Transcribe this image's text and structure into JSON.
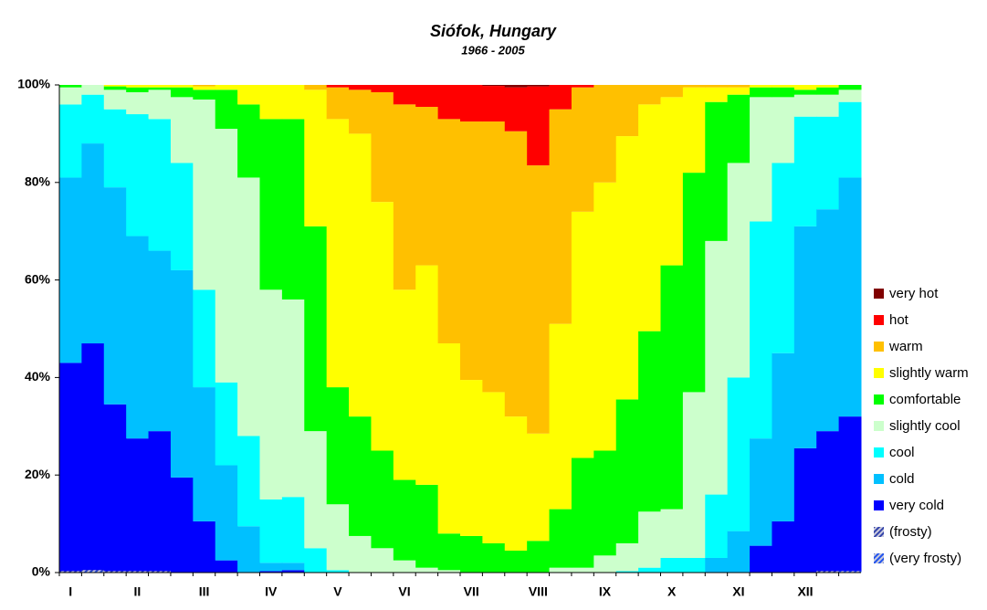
{
  "chart_data": {
    "type": "stacked_bar_100",
    "title": "Siófok, Hungary",
    "subtitle": "1966 - 2005",
    "categories": [
      "I",
      null,
      null,
      "II",
      null,
      null,
      "III",
      null,
      null,
      "IV",
      null,
      null,
      "V",
      null,
      null,
      "VI",
      null,
      null,
      "VII",
      null,
      null,
      "VIII",
      null,
      null,
      "IX",
      null,
      null,
      "X",
      null,
      null,
      "XI",
      null,
      null,
      "XII",
      null,
      null
    ],
    "ylim": [
      0,
      100
    ],
    "yticks": [
      {
        "value": 0,
        "label": "0%"
      },
      {
        "value": 20,
        "label": "20%"
      },
      {
        "value": 40,
        "label": "40%"
      },
      {
        "value": 60,
        "label": "60%"
      },
      {
        "value": 80,
        "label": "80%"
      },
      {
        "value": 100,
        "label": "100%"
      }
    ],
    "series": [
      {
        "name": "very cold",
        "color": "#0000ff",
        "values": [
          43,
          47,
          34.5,
          27.5,
          29,
          19.5,
          10.5,
          2.5,
          0,
          0.3,
          0.5,
          0,
          0,
          0,
          0,
          0,
          0,
          0,
          0,
          0,
          0,
          0,
          0,
          0,
          0,
          0,
          0,
          0,
          0,
          0,
          0,
          5.5,
          10.5,
          25.5,
          29,
          32
        ]
      },
      {
        "name": "cold",
        "color": "#00c0ff",
        "values": [
          38,
          41,
          44.5,
          41.5,
          37,
          42.5,
          27.5,
          19.5,
          9.5,
          1.7,
          1.5,
          0,
          0,
          0,
          0,
          0,
          0,
          0,
          0,
          0,
          0,
          0,
          0,
          0,
          0,
          0,
          0,
          0,
          0,
          3,
          8.5,
          22,
          34.5,
          45.5,
          45.5,
          49
        ]
      },
      {
        "name": "cool",
        "color": "#00ffff",
        "values": [
          15,
          10,
          16,
          25,
          27,
          22,
          20,
          17,
          18.5,
          13,
          13.5,
          5,
          0.5,
          0,
          0,
          0,
          0,
          0,
          0,
          0,
          0,
          0,
          0,
          0,
          0,
          0.3,
          1,
          3,
          3,
          13,
          31.5,
          44.5,
          39,
          22.5,
          19,
          15.5
        ]
      },
      {
        "name": "slightly cool",
        "color": "#ccffcc",
        "values": [
          3.5,
          2,
          4,
          4.5,
          6,
          13.5,
          39,
          52,
          53,
          43,
          40.5,
          24,
          13.5,
          7.5,
          5,
          2.5,
          1,
          0.5,
          0,
          0,
          0,
          0,
          1,
          1,
          3.5,
          5.7,
          11.5,
          10,
          34,
          52,
          44,
          25.5,
          13.5,
          4.5,
          4.5,
          2.5
        ]
      },
      {
        "name": "comfortable",
        "color": "#00ff00",
        "values": [
          0.5,
          0,
          0.7,
          1,
          0.5,
          2,
          2,
          8,
          15,
          35,
          37,
          42,
          24,
          24.5,
          20,
          16.5,
          17,
          7.5,
          7.5,
          6,
          4.5,
          6.5,
          12,
          22.5,
          21.5,
          29.5,
          37,
          50,
          45,
          28.5,
          14,
          2,
          2,
          1,
          1.5,
          1
        ]
      },
      {
        "name": "slightly warm",
        "color": "#ffff00",
        "values": [
          0,
          0,
          0.3,
          0.5,
          0.5,
          0.5,
          0.7,
          1,
          4,
          7,
          7,
          28,
          55,
          58,
          51,
          39,
          45,
          39,
          32,
          31,
          27.5,
          22,
          38,
          50.5,
          55,
          54,
          46.5,
          34.5,
          17.5,
          3,
          1.5,
          0.5,
          0.5,
          1,
          0.5,
          0
        ]
      },
      {
        "name": "warm",
        "color": "#ffc000",
        "values": [
          0,
          0,
          0,
          0,
          0,
          0,
          0.3,
          0,
          0,
          0,
          0,
          1,
          6.5,
          9,
          22.5,
          38,
          32.5,
          46,
          53,
          55.5,
          58.5,
          55,
          44,
          25.5,
          20,
          10.5,
          4,
          2.5,
          0.5,
          0.5,
          0.5,
          0,
          0,
          0,
          0,
          0
        ]
      },
      {
        "name": "hot",
        "color": "#ff0000",
        "values": [
          0,
          0,
          0,
          0,
          0,
          0,
          0,
          0,
          0,
          0,
          0,
          0,
          0.5,
          1,
          1.5,
          4,
          4.5,
          7,
          7.5,
          7.3,
          9,
          16.2,
          5,
          0.5,
          0,
          0,
          0,
          0,
          0,
          0,
          0,
          0,
          0,
          0,
          0,
          0
        ]
      },
      {
        "name": "very hot",
        "color": "#800000",
        "values": [
          0,
          0,
          0,
          0,
          0,
          0,
          0,
          0,
          0,
          0,
          0,
          0,
          0,
          0,
          0,
          0,
          0,
          0,
          0,
          0.2,
          0.5,
          0.3,
          0,
          0,
          0,
          0,
          0,
          0,
          0,
          0,
          0,
          0,
          0,
          0,
          0,
          0
        ]
      },
      {
        "name": "(frosty)",
        "color": "#3344aa",
        "hatch": true,
        "values": [
          0.3,
          0.5,
          0.3,
          0.3,
          0.3,
          0,
          0,
          0,
          0,
          0,
          0,
          0,
          0,
          0,
          0,
          0,
          0,
          0,
          0,
          0,
          0,
          0,
          0,
          0,
          0,
          0,
          0,
          0,
          0,
          0,
          0,
          0,
          0,
          0,
          0.3,
          0.3
        ]
      },
      {
        "name": "(very frosty)",
        "color": "#2255ee",
        "hatch": true,
        "values": [
          0,
          0.3,
          0,
          0,
          0,
          0,
          0,
          0,
          0,
          0,
          0,
          0,
          0,
          0,
          0,
          0,
          0,
          0,
          0,
          0,
          0,
          0,
          0,
          0,
          0,
          0,
          0,
          0,
          0,
          0,
          0,
          0,
          0,
          0,
          0,
          0.3
        ]
      }
    ]
  }
}
